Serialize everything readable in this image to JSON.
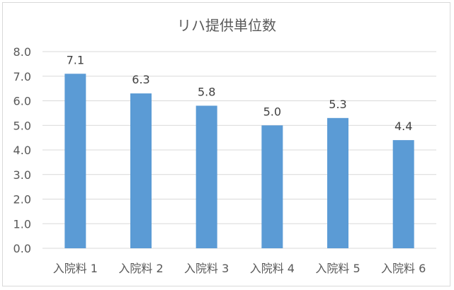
{
  "chart_data": {
    "type": "bar",
    "title": "リハ提供単位数",
    "categories": [
      "入院料 1",
      "入院料 2",
      "入院料 3",
      "入院料 4",
      "入院料 5",
      "入院料 6"
    ],
    "values": [
      7.1,
      6.3,
      5.8,
      5.0,
      5.3,
      4.4
    ],
    "data_labels": [
      "7.1",
      "6.3",
      "5.8",
      "5.0",
      "5.3",
      "4.4"
    ],
    "xlabel": "",
    "ylabel": "",
    "ylim": [
      0,
      8
    ],
    "yticks": [
      "0.0",
      "1.0",
      "2.0",
      "3.0",
      "4.0",
      "5.0",
      "6.0",
      "7.0",
      "8.0"
    ],
    "grid": true,
    "legend": "none",
    "bar_color": "#5b9bd5",
    "grid_color": "#d9d9d9"
  }
}
